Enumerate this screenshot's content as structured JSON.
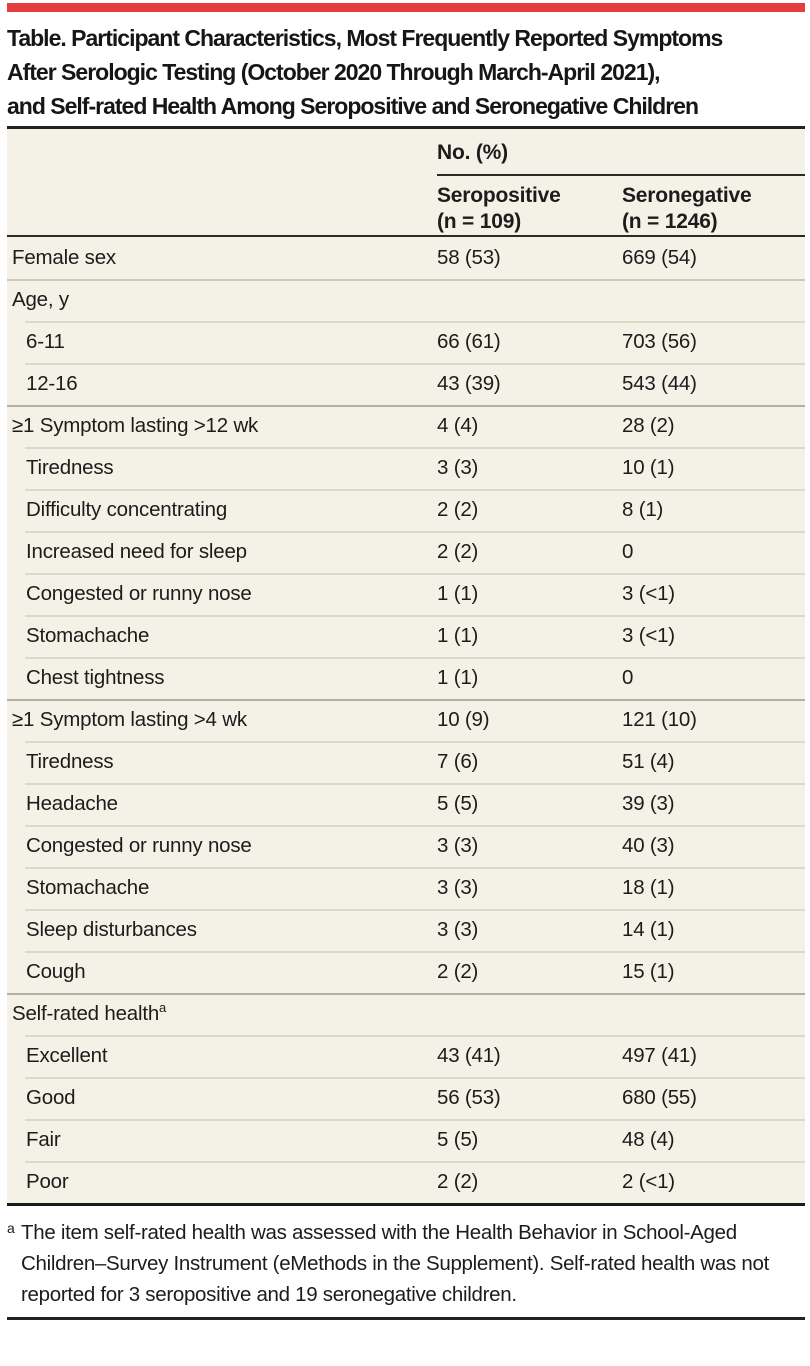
{
  "page": {
    "title": "Table. Participant Characteristics, Most Frequently Reported Symptoms After Serologic Testing (October 2020 Through March-April 2021), and Self-rated Health Among Seropositive and Seronegative Children",
    "title_lines": [
      "Table. Participant Characteristics, Most Frequently Reported Symptoms",
      "After Serologic Testing (October 2020 Through March-April 2021),",
      "and Self-rated Health Among Seropositive and Seronegative Children"
    ]
  },
  "table": {
    "spanner": "No. (%)",
    "columns": [
      {
        "name": "Seropositive",
        "n": "(n = 109)"
      },
      {
        "name": "Seronegative",
        "n": "(n = 1246)"
      }
    ],
    "rows": [
      {
        "label": "Female sex",
        "seropositive": "58 (53)",
        "seronegative": "669 (54)",
        "indent": false,
        "sep": "none"
      },
      {
        "label": "Age, y",
        "seropositive": "",
        "seronegative": "",
        "indent": false,
        "sep": "full-light"
      },
      {
        "label": "6-11",
        "seropositive": "66 (61)",
        "seronegative": "703 (56)",
        "indent": true,
        "sep": "inset-light"
      },
      {
        "label": "12-16",
        "seropositive": "43 (39)",
        "seronegative": "543 (44)",
        "indent": true,
        "sep": "inset-light"
      },
      {
        "label": "≥1 Symptom lasting >12 wk",
        "seropositive": "4 (4)",
        "seronegative": "28 (2)",
        "indent": false,
        "sep": "full-dark"
      },
      {
        "label": "Tiredness",
        "seropositive": "3 (3)",
        "seronegative": "10 (1)",
        "indent": true,
        "sep": "inset-light"
      },
      {
        "label": "Difficulty concentrating",
        "seropositive": "2 (2)",
        "seronegative": "8 (1)",
        "indent": true,
        "sep": "inset-light"
      },
      {
        "label": "Increased need for sleep",
        "seropositive": "2 (2)",
        "seronegative": "0",
        "indent": true,
        "sep": "inset-light"
      },
      {
        "label": "Congested or runny nose",
        "seropositive": "1 (1)",
        "seronegative": "3 (<1)",
        "indent": true,
        "sep": "inset-light"
      },
      {
        "label": "Stomachache",
        "seropositive": "1 (1)",
        "seronegative": "3 (<1)",
        "indent": true,
        "sep": "inset-light"
      },
      {
        "label": "Chest tightness",
        "seropositive": "1 (1)",
        "seronegative": "0",
        "indent": true,
        "sep": "inset-light"
      },
      {
        "label": "≥1 Symptom lasting >4 wk",
        "seropositive": "10 (9)",
        "seronegative": "121 (10)",
        "indent": false,
        "sep": "full-dark"
      },
      {
        "label": "Tiredness",
        "seropositive": "7 (6)",
        "seronegative": "51 (4)",
        "indent": true,
        "sep": "inset-light"
      },
      {
        "label": "Headache",
        "seropositive": "5 (5)",
        "seronegative": "39 (3)",
        "indent": true,
        "sep": "inset-light"
      },
      {
        "label": "Congested or runny nose",
        "seropositive": "3 (3)",
        "seronegative": "40 (3)",
        "indent": true,
        "sep": "inset-light"
      },
      {
        "label": "Stomachache",
        "seropositive": "3 (3)",
        "seronegative": "18 (1)",
        "indent": true,
        "sep": "inset-light"
      },
      {
        "label": "Sleep disturbances",
        "seropositive": "3 (3)",
        "seronegative": "14 (1)",
        "indent": true,
        "sep": "inset-light"
      },
      {
        "label": "Cough",
        "seropositive": "2 (2)",
        "seronegative": "15 (1)",
        "indent": true,
        "sep": "inset-light"
      },
      {
        "label": "Self-rated health",
        "sup": "a",
        "seropositive": "",
        "seronegative": "",
        "indent": false,
        "sep": "full-dark"
      },
      {
        "label": "Excellent",
        "seropositive": "43 (41)",
        "seronegative": "497 (41)",
        "indent": true,
        "sep": "inset-light"
      },
      {
        "label": "Good",
        "seropositive": "56 (53)",
        "seronegative": "680 (55)",
        "indent": true,
        "sep": "inset-light"
      },
      {
        "label": "Fair",
        "seropositive": "5 (5)",
        "seronegative": "48 (4)",
        "indent": true,
        "sep": "inset-light"
      },
      {
        "label": "Poor",
        "seropositive": "2 (2)",
        "seronegative": "2 (<1)",
        "indent": true,
        "sep": "inset-light"
      }
    ]
  },
  "footnote": {
    "marker": "a",
    "text": "The item self-rated health was assessed with the Health Behavior in School-Aged Children–Survey Instrument (eMethods in the Supplement). Self-rated health was not reported for 3 seropositive and 19 seronegative children."
  },
  "colors": {
    "accent_red": "#e53c3e",
    "table_background": "#f4f2e6",
    "text": "#1c1c1c",
    "separator_light": "#ddd9ca",
    "separator_dark": "#b3b0a1",
    "rule_black": "#222220"
  }
}
